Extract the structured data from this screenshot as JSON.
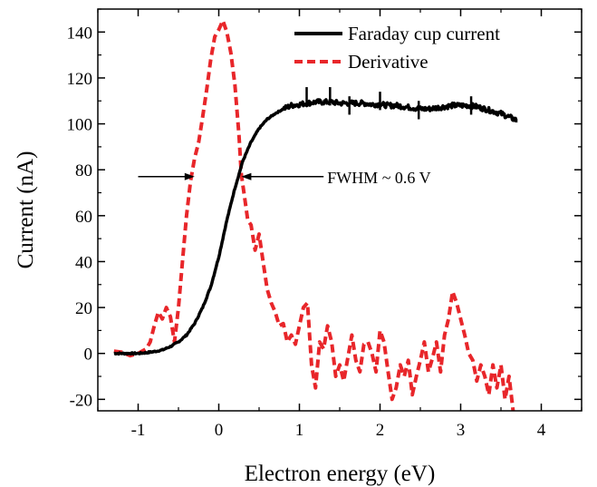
{
  "chart_data": {
    "type": "line",
    "xlabel": "Electron energy (eV)",
    "ylabel": "Current (nA)",
    "xlim": [
      -1.5,
      4.5
    ],
    "ylim": [
      -25,
      150
    ],
    "x_ticks": [
      -1,
      0,
      1,
      2,
      3,
      4
    ],
    "y_ticks": [
      -20,
      0,
      20,
      40,
      60,
      80,
      100,
      120,
      140
    ],
    "x_tick_labels": [
      "-1",
      "0",
      "1",
      "2",
      "3",
      "4"
    ],
    "y_tick_labels": [
      "-20",
      "0",
      "20",
      "40",
      "60",
      "80",
      "100",
      "120",
      "140"
    ],
    "grid": false,
    "legend_position": "top-right",
    "series": [
      {
        "name": "Faraday cup current",
        "style": "solid",
        "color": "#000000",
        "points": [
          [
            -1.3,
            0
          ],
          [
            -1.2,
            0
          ],
          [
            -1.1,
            0
          ],
          [
            -1.0,
            0
          ],
          [
            -0.9,
            0.3
          ],
          [
            -0.8,
            0.8
          ],
          [
            -0.7,
            1.5
          ],
          [
            -0.6,
            3
          ],
          [
            -0.5,
            5
          ],
          [
            -0.4,
            8
          ],
          [
            -0.3,
            13
          ],
          [
            -0.2,
            20
          ],
          [
            -0.1,
            29
          ],
          [
            0.0,
            42
          ],
          [
            0.1,
            58
          ],
          [
            0.2,
            72
          ],
          [
            0.3,
            84
          ],
          [
            0.4,
            92
          ],
          [
            0.5,
            98
          ],
          [
            0.6,
            102
          ],
          [
            0.7,
            104.5
          ],
          [
            0.8,
            106.5
          ],
          [
            0.9,
            108
          ],
          [
            1.0,
            108.5
          ],
          [
            1.1,
            109
          ],
          [
            1.2,
            109.5
          ],
          [
            1.3,
            109.5
          ],
          [
            1.4,
            109.5
          ],
          [
            1.5,
            109
          ],
          [
            1.6,
            109
          ],
          [
            1.7,
            109
          ],
          [
            1.8,
            109
          ],
          [
            1.9,
            108.5
          ],
          [
            2.0,
            108.5
          ],
          [
            2.1,
            108
          ],
          [
            2.2,
            108
          ],
          [
            2.3,
            107.5
          ],
          [
            2.4,
            107
          ],
          [
            2.5,
            106.5
          ],
          [
            2.6,
            106.5
          ],
          [
            2.7,
            107
          ],
          [
            2.8,
            107.5
          ],
          [
            2.9,
            108
          ],
          [
            3.0,
            108
          ],
          [
            3.1,
            108
          ],
          [
            3.2,
            107.5
          ],
          [
            3.3,
            106.5
          ],
          [
            3.4,
            105.5
          ],
          [
            3.5,
            104.5
          ],
          [
            3.6,
            103
          ],
          [
            3.7,
            101.5
          ]
        ],
        "spikes": [
          [
            1.09,
            116
          ],
          [
            1.38,
            116
          ],
          [
            2.0,
            114
          ],
          [
            3.13,
            112
          ],
          [
            2.48,
            110
          ],
          [
            1.62,
            112
          ]
        ]
      },
      {
        "name": "Derivative",
        "style": "dashed",
        "color": "#e8262a",
        "points": [
          [
            -1.3,
            1
          ],
          [
            -1.2,
            0.5
          ],
          [
            -1.1,
            -1
          ],
          [
            -1.0,
            0
          ],
          [
            -0.9,
            2
          ],
          [
            -0.85,
            5
          ],
          [
            -0.8,
            12
          ],
          [
            -0.75,
            18
          ],
          [
            -0.7,
            15
          ],
          [
            -0.65,
            20
          ],
          [
            -0.6,
            16
          ],
          [
            -0.55,
            5
          ],
          [
            -0.5,
            20
          ],
          [
            -0.45,
            40
          ],
          [
            -0.4,
            60
          ],
          [
            -0.35,
            75
          ],
          [
            -0.3,
            85
          ],
          [
            -0.25,
            92
          ],
          [
            -0.2,
            103
          ],
          [
            -0.15,
            115
          ],
          [
            -0.1,
            128
          ],
          [
            -0.05,
            138
          ],
          [
            0.0,
            141
          ],
          [
            0.05,
            145
          ],
          [
            0.1,
            140
          ],
          [
            0.15,
            131
          ],
          [
            0.2,
            117
          ],
          [
            0.25,
            95
          ],
          [
            0.28,
            78
          ],
          [
            0.32,
            68
          ],
          [
            0.36,
            58
          ],
          [
            0.4,
            56
          ],
          [
            0.45,
            45
          ],
          [
            0.5,
            52
          ],
          [
            0.55,
            40
          ],
          [
            0.6,
            28
          ],
          [
            0.65,
            22
          ],
          [
            0.7,
            18
          ],
          [
            0.75,
            12
          ],
          [
            0.8,
            13
          ],
          [
            0.85,
            5
          ],
          [
            0.9,
            8
          ],
          [
            0.95,
            4
          ],
          [
            1.0,
            12
          ],
          [
            1.05,
            20
          ],
          [
            1.1,
            22
          ],
          [
            1.15,
            -5
          ],
          [
            1.2,
            -15
          ],
          [
            1.25,
            5
          ],
          [
            1.3,
            2
          ],
          [
            1.35,
            12
          ],
          [
            1.4,
            5
          ],
          [
            1.45,
            -10
          ],
          [
            1.5,
            -5
          ],
          [
            1.55,
            -12
          ],
          [
            1.6,
            -2
          ],
          [
            1.65,
            8
          ],
          [
            1.7,
            -3
          ],
          [
            1.75,
            -8
          ],
          [
            1.8,
            4
          ],
          [
            1.85,
            5
          ],
          [
            1.9,
            0
          ],
          [
            1.95,
            -8
          ],
          [
            2.0,
            10
          ],
          [
            2.05,
            5
          ],
          [
            2.1,
            -8
          ],
          [
            2.15,
            -20
          ],
          [
            2.2,
            -15
          ],
          [
            2.25,
            -5
          ],
          [
            2.3,
            -10
          ],
          [
            2.35,
            -3
          ],
          [
            2.4,
            -18
          ],
          [
            2.45,
            -10
          ],
          [
            2.5,
            -3
          ],
          [
            2.55,
            5
          ],
          [
            2.6,
            -8
          ],
          [
            2.65,
            -2
          ],
          [
            2.7,
            5
          ],
          [
            2.75,
            -8
          ],
          [
            2.8,
            8
          ],
          [
            2.85,
            15
          ],
          [
            2.9,
            27
          ],
          [
            2.95,
            22
          ],
          [
            3.0,
            15
          ],
          [
            3.05,
            8
          ],
          [
            3.1,
            0
          ],
          [
            3.15,
            -3
          ],
          [
            3.2,
            -12
          ],
          [
            3.25,
            -5
          ],
          [
            3.3,
            -10
          ],
          [
            3.35,
            -18
          ],
          [
            3.4,
            -5
          ],
          [
            3.45,
            -15
          ],
          [
            3.5,
            -5
          ],
          [
            3.55,
            -20
          ],
          [
            3.6,
            -10
          ],
          [
            3.65,
            -25
          ]
        ]
      }
    ],
    "annotations": [
      {
        "text": "FWHM ~ 0.6 V",
        "x": 1.4,
        "y": 77,
        "arrow_left_from_x": -1.0,
        "arrow_left_to_x": -0.3,
        "arrow_right_from_x": 1.3,
        "arrow_right_to_x": 0.28
      }
    ]
  }
}
